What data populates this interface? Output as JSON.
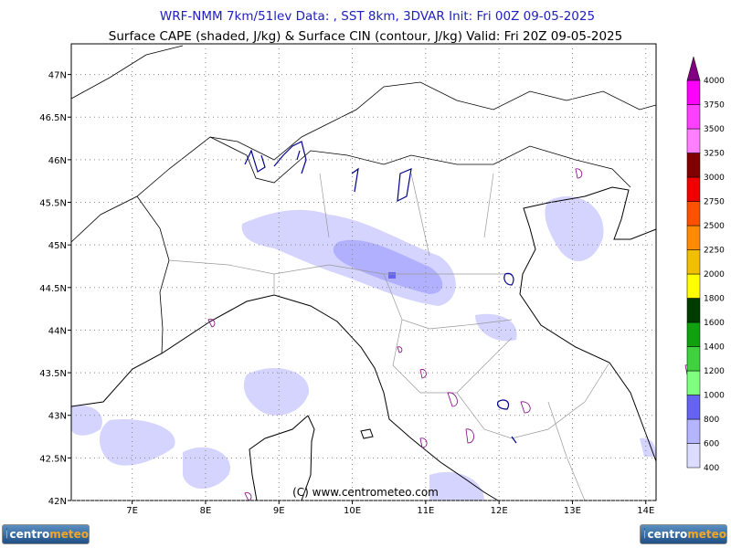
{
  "title": "WRF-NMM 7km/51lev  Data: , SST 8km, 3DVAR  Init: Fri 00Z 09-05-2025",
  "subtitle": "Surface CAPE (shaded, J/kg) & Surface CIN (contour, J/kg)  Valid: Fri 20Z 09-05-2025",
  "map": {
    "lonlim": [
      6.17,
      14.14
    ],
    "latlim": [
      42,
      47.36
    ],
    "lat_ticks": [
      {
        "value": 42,
        "label": "42N"
      },
      {
        "value": 42.5,
        "label": "42.5N"
      },
      {
        "value": 43,
        "label": "43N"
      },
      {
        "value": 43.5,
        "label": "43.5N"
      },
      {
        "value": 44,
        "label": "44N"
      },
      {
        "value": 44.5,
        "label": "44.5N"
      },
      {
        "value": 45,
        "label": "45N"
      },
      {
        "value": 45.5,
        "label": "45.5N"
      },
      {
        "value": 46,
        "label": "46N"
      },
      {
        "value": 46.5,
        "label": "46.5N"
      },
      {
        "value": 47,
        "label": "47N"
      }
    ],
    "lon_ticks": [
      {
        "value": 7,
        "label": "7E"
      },
      {
        "value": 8,
        "label": "8E"
      },
      {
        "value": 9,
        "label": "9E"
      },
      {
        "value": 10,
        "label": "10E"
      },
      {
        "value": 11,
        "label": "11E"
      },
      {
        "value": 12,
        "label": "12E"
      },
      {
        "value": 13,
        "label": "13E"
      },
      {
        "value": 14,
        "label": "14E"
      }
    ],
    "grid": true
  },
  "legend": {
    "levels": [
      400,
      600,
      800,
      1000,
      1200,
      1400,
      1600,
      1800,
      2000,
      2250,
      2500,
      2750,
      3000,
      3250,
      3500,
      3750,
      4000
    ],
    "colors": [
      "#dcdcff",
      "#b4b4ff",
      "#6464f0",
      "#80ff80",
      "#40d040",
      "#10a010",
      "#003c00",
      "#ffff00",
      "#f0c000",
      "#ff8c00",
      "#ff5000",
      "#f00000",
      "#800000",
      "#ff80ff",
      "#ff40ff",
      "#ff00ff"
    ],
    "top_color": "#800080"
  },
  "copyright": "(C) www.centrometeo.com",
  "logo": {
    "prefix": "centro",
    "suffix": "meteo"
  }
}
